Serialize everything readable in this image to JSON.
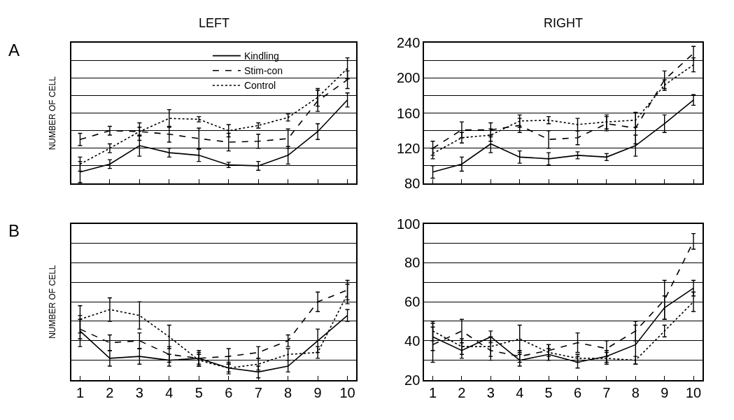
{
  "chart_data": [
    {
      "type": "line",
      "title": "LEFT",
      "ylabel": "NUMBER OF CELL",
      "annotations": [
        "A"
      ],
      "categories": [
        "1",
        "2",
        "3",
        "4",
        "5",
        "6",
        "7",
        "8",
        "9",
        "10"
      ],
      "ylim": [
        80,
        240
      ],
      "yticks": [
        80,
        100,
        120,
        140,
        160,
        180,
        200,
        220,
        240
      ],
      "tick_labels": false,
      "grid": "y",
      "legend": "top",
      "marker": "none",
      "series": [
        {
          "name": "Kindling",
          "color": "#000000",
          "line_style": "solid",
          "values": [
            93,
            102,
            123,
            115,
            112,
            101,
            100,
            112,
            139,
            175
          ],
          "errors": [
            12,
            5,
            12,
            5,
            7,
            3,
            5,
            10,
            9,
            8
          ]
        },
        {
          "name": "Stim-con",
          "color": "#000000",
          "line_style": "dashed",
          "values": [
            130,
            140,
            139,
            136,
            131,
            127,
            128,
            131,
            174,
            198
          ],
          "errors": [
            7,
            5,
            10,
            9,
            12,
            10,
            8,
            11,
            12,
            10
          ]
        },
        {
          "name": "Control",
          "color": "#000000",
          "line_style": "dotted",
          "values": [
            102,
            120,
            139,
            154,
            153,
            140,
            146,
            155,
            178,
            211
          ],
          "errors": [
            8,
            5,
            5,
            10,
            3,
            7,
            3,
            4,
            10,
            12
          ]
        }
      ]
    },
    {
      "type": "line",
      "title": "RIGHT",
      "categories": [
        "1",
        "2",
        "3",
        "4",
        "5",
        "6",
        "7",
        "8",
        "9",
        "10"
      ],
      "ylim": [
        80,
        240
      ],
      "yticks": [
        80,
        {
          "value": 100,
          "label": null
        },
        120,
        {
          "value": 140,
          "label": null
        },
        160,
        {
          "value": 180,
          "label": null
        },
        200,
        {
          "value": 220,
          "label": null
        },
        240
      ],
      "tick_labels": "y",
      "grid": "y",
      "marker": "none",
      "series": [
        {
          "color": "#000000",
          "line_style": "solid",
          "values": [
            93,
            102,
            125,
            110,
            108,
            112,
            110,
            123,
            148,
            175
          ],
          "errors": [
            7,
            8,
            10,
            7,
            7,
            4,
            4,
            12,
            10,
            6
          ]
        },
        {
          "color": "#000000",
          "line_style": "dashed",
          "values": [
            120,
            141,
            141,
            146,
            130,
            132,
            148,
            143,
            198,
            228
          ],
          "errors": [
            8,
            9,
            8,
            8,
            10,
            8,
            8,
            18,
            10,
            8
          ]
        },
        {
          "color": "#000000",
          "line_style": "dotted",
          "values": [
            114,
            132,
            135,
            151,
            152,
            147,
            150,
            152,
            192,
            215
          ],
          "errors": [
            6,
            6,
            7,
            7,
            4,
            7,
            8,
            8,
            6,
            8
          ]
        }
      ]
    },
    {
      "type": "line",
      "ylabel": "NUMBER OF CELL",
      "annotations": [
        "B"
      ],
      "categories": [
        "1",
        "2",
        "3",
        "4",
        "5",
        "6",
        "7",
        "8",
        "9",
        "10"
      ],
      "ylim": [
        20,
        100
      ],
      "yticks": [
        20,
        30,
        40,
        50,
        60,
        70,
        80,
        90,
        100
      ],
      "tick_labels": "x",
      "grid": "y",
      "marker": "none",
      "series": [
        {
          "color": "#000000",
          "line_style": "solid",
          "values": [
            45,
            31,
            32,
            30,
            31,
            26,
            24,
            27,
            40,
            53
          ],
          "errors": [
            8,
            4,
            4,
            3,
            4,
            3,
            3,
            3,
            6,
            3
          ]
        },
        {
          "color": "#000000",
          "line_style": "dashed",
          "values": [
            46,
            39,
            40,
            33,
            31,
            32,
            34,
            40,
            60,
            66
          ],
          "errors": [
            5,
            4,
            4,
            4,
            3,
            4,
            3,
            3,
            5,
            5
          ]
        },
        {
          "color": "#000000",
          "line_style": "dotted",
          "values": [
            51,
            56,
            53,
            42,
            30,
            26,
            28,
            33,
            34,
            64
          ],
          "errors": [
            7,
            6,
            7,
            6,
            3,
            2,
            3,
            3,
            3,
            5
          ]
        }
      ]
    },
    {
      "type": "line",
      "categories": [
        "1",
        "2",
        "3",
        "4",
        "5",
        "6",
        "7",
        "8",
        "9",
        "10"
      ],
      "ylim": [
        20,
        100
      ],
      "yticks": [
        20,
        {
          "value": 30,
          "label": null
        },
        40,
        {
          "value": 50,
          "label": null
        },
        60,
        {
          "value": 70,
          "label": null
        },
        80,
        {
          "value": 90,
          "label": null
        },
        100
      ],
      "grid": "y",
      "marker": "none",
      "series": [
        {
          "color": "#000000",
          "line_style": "solid",
          "values": [
            42,
            35,
            42,
            30,
            33,
            29,
            32,
            38,
            57,
            67
          ],
          "errors": [
            7,
            4,
            3,
            3,
            3,
            3,
            3,
            10,
            6,
            4
          ]
        },
        {
          "color": "#000000",
          "line_style": "dashed",
          "values": [
            38,
            45,
            35,
            32,
            35,
            39,
            36,
            45,
            61,
            91
          ],
          "errors": [
            9,
            6,
            5,
            3,
            3,
            5,
            4,
            5,
            10,
            4
          ]
        },
        {
          "color": "#000000",
          "line_style": "dotted",
          "values": [
            45,
            37,
            37,
            41,
            34,
            31,
            31,
            30,
            45,
            60
          ],
          "errors": [
            5,
            4,
            5,
            7,
            4,
            2,
            3,
            2,
            3,
            5
          ]
        }
      ]
    }
  ]
}
